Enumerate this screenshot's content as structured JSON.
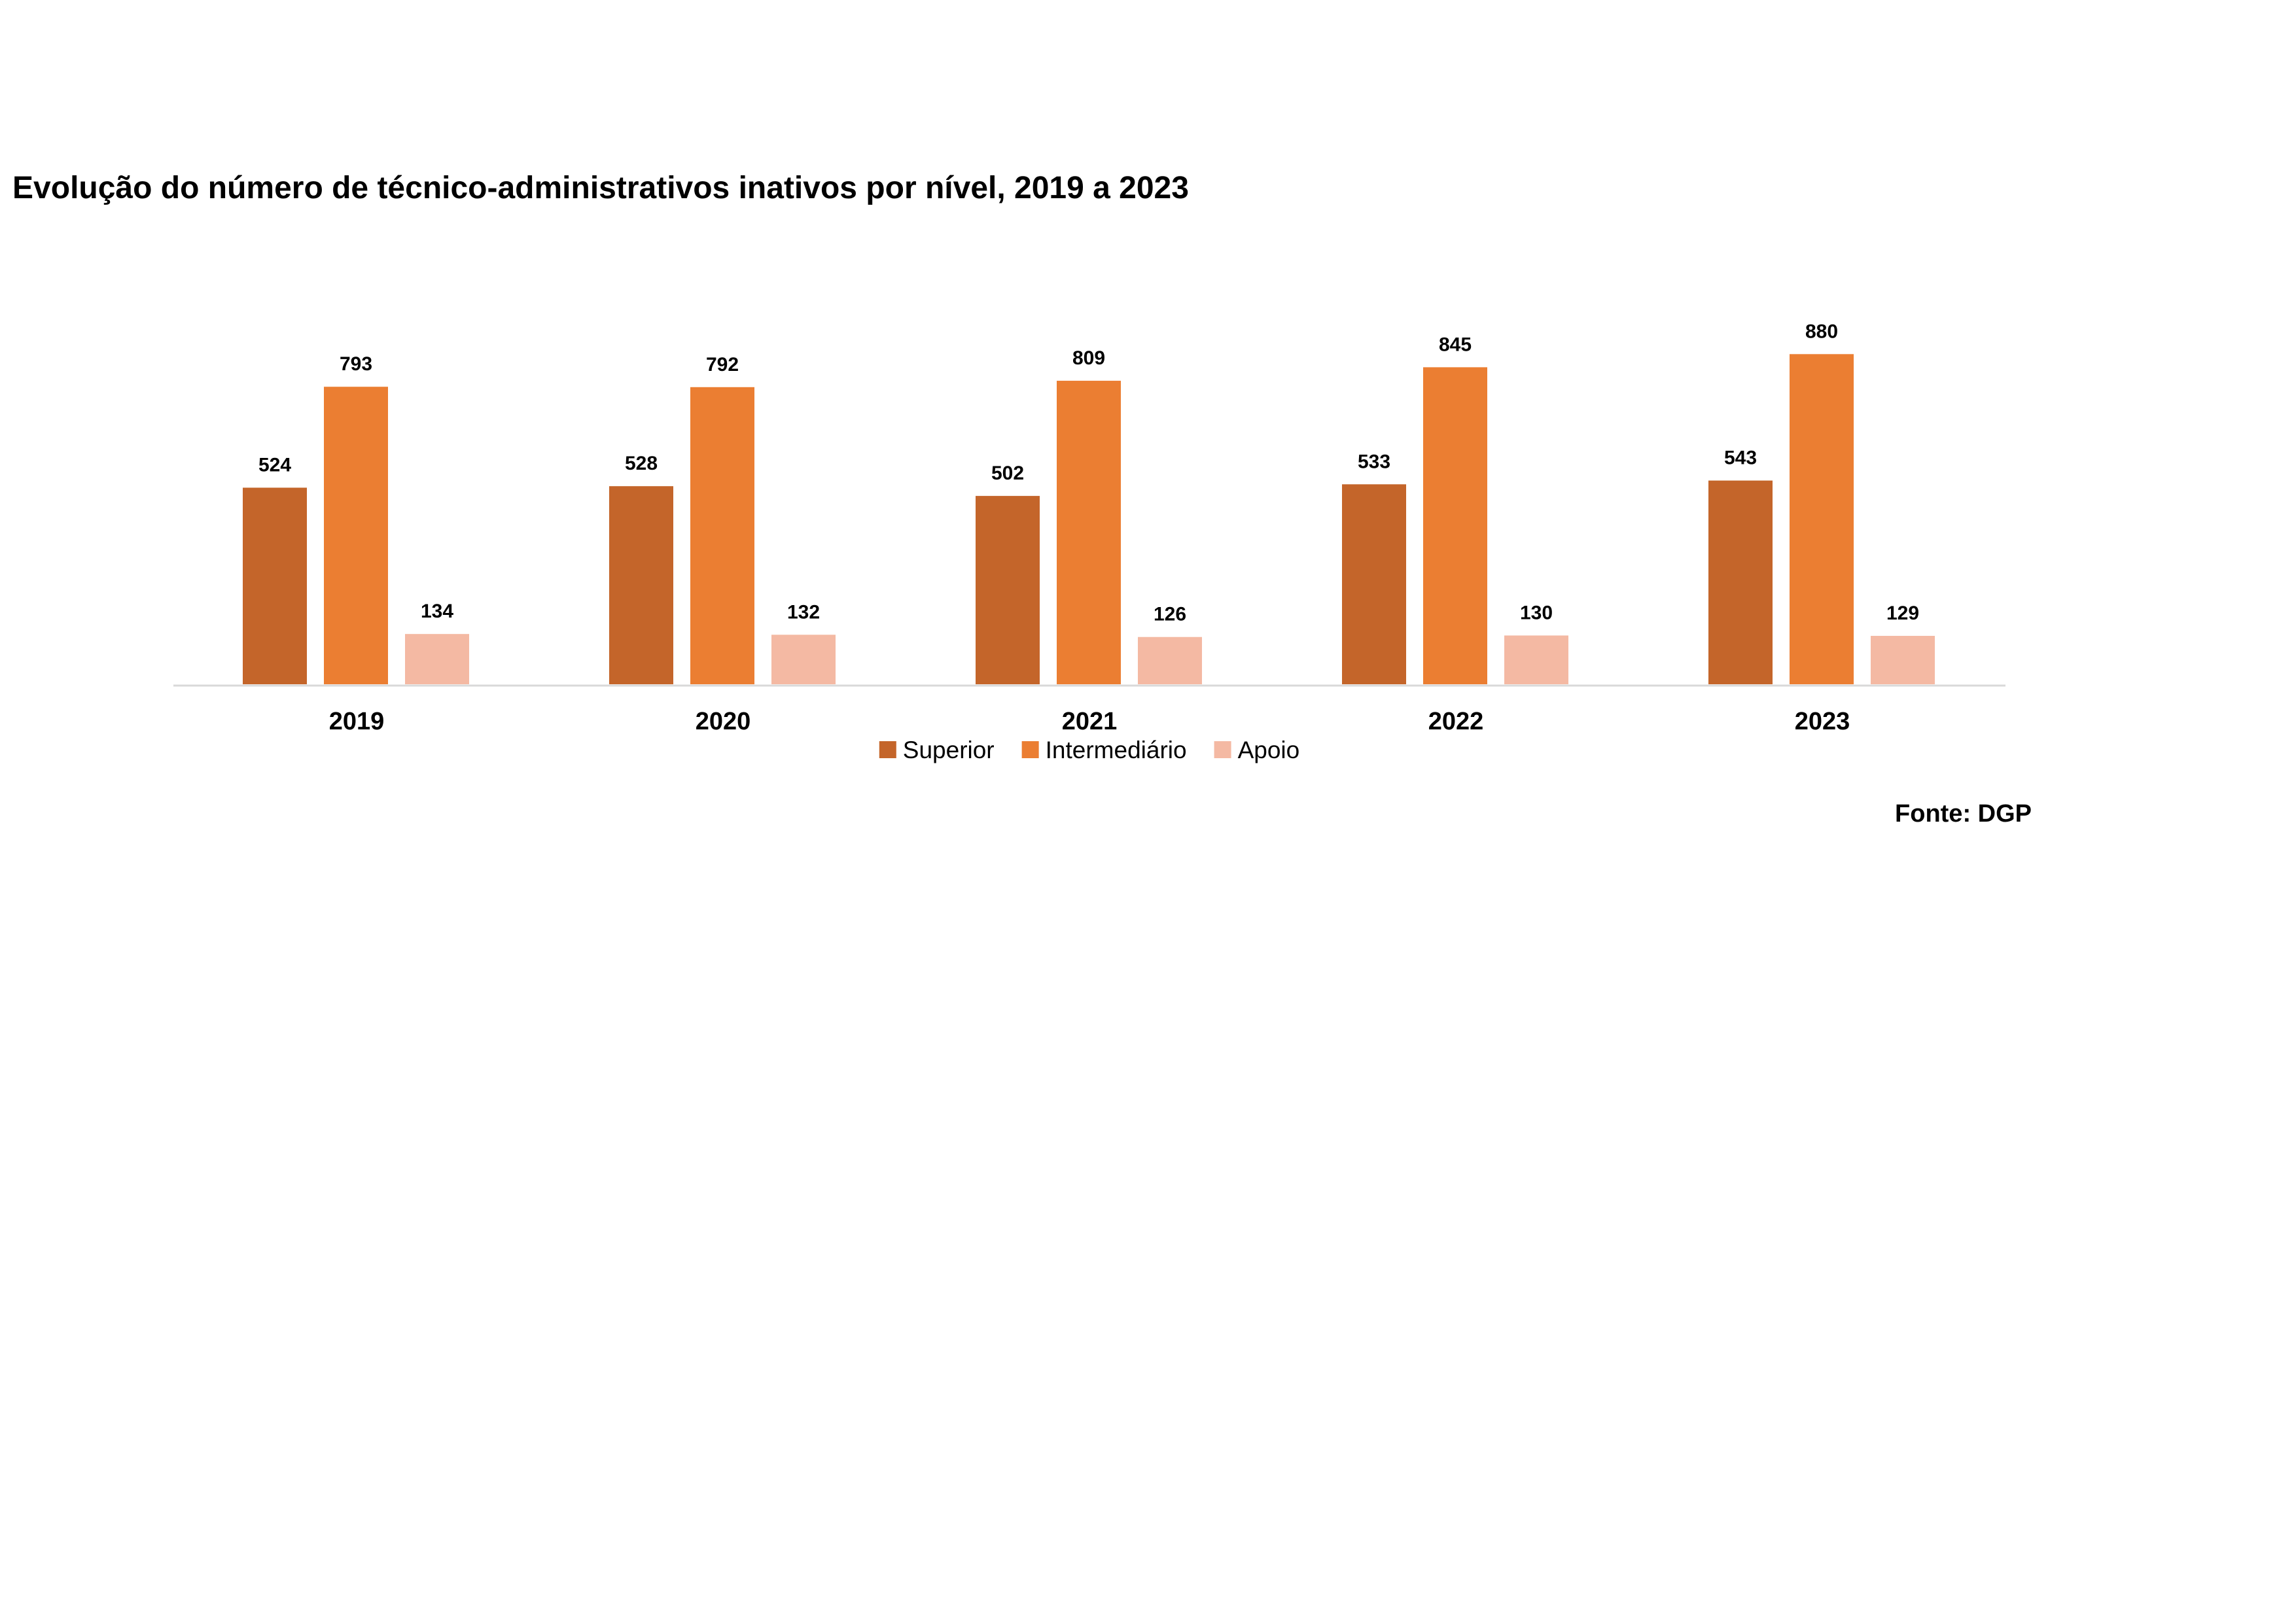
{
  "chart_data": {
    "type": "bar",
    "title": "Evolução do número de técnico-administrativos inativos por nível, 2019 a 2023",
    "categories": [
      "2019",
      "2020",
      "2021",
      "2022",
      "2023"
    ],
    "series": [
      {
        "name": "Superior",
        "color": "#C4652A",
        "values": [
          524,
          528,
          502,
          533,
          543
        ]
      },
      {
        "name": "Intermediário",
        "color": "#EB7E32",
        "values": [
          793,
          792,
          809,
          845,
          880
        ]
      },
      {
        "name": "Apoio",
        "color": "#F4B9A3",
        "values": [
          134,
          132,
          126,
          130,
          129
        ]
      }
    ],
    "ylim": [
      0,
      1000
    ],
    "grid": false,
    "legend": "bottom",
    "source": "Fonte: DGP"
  }
}
